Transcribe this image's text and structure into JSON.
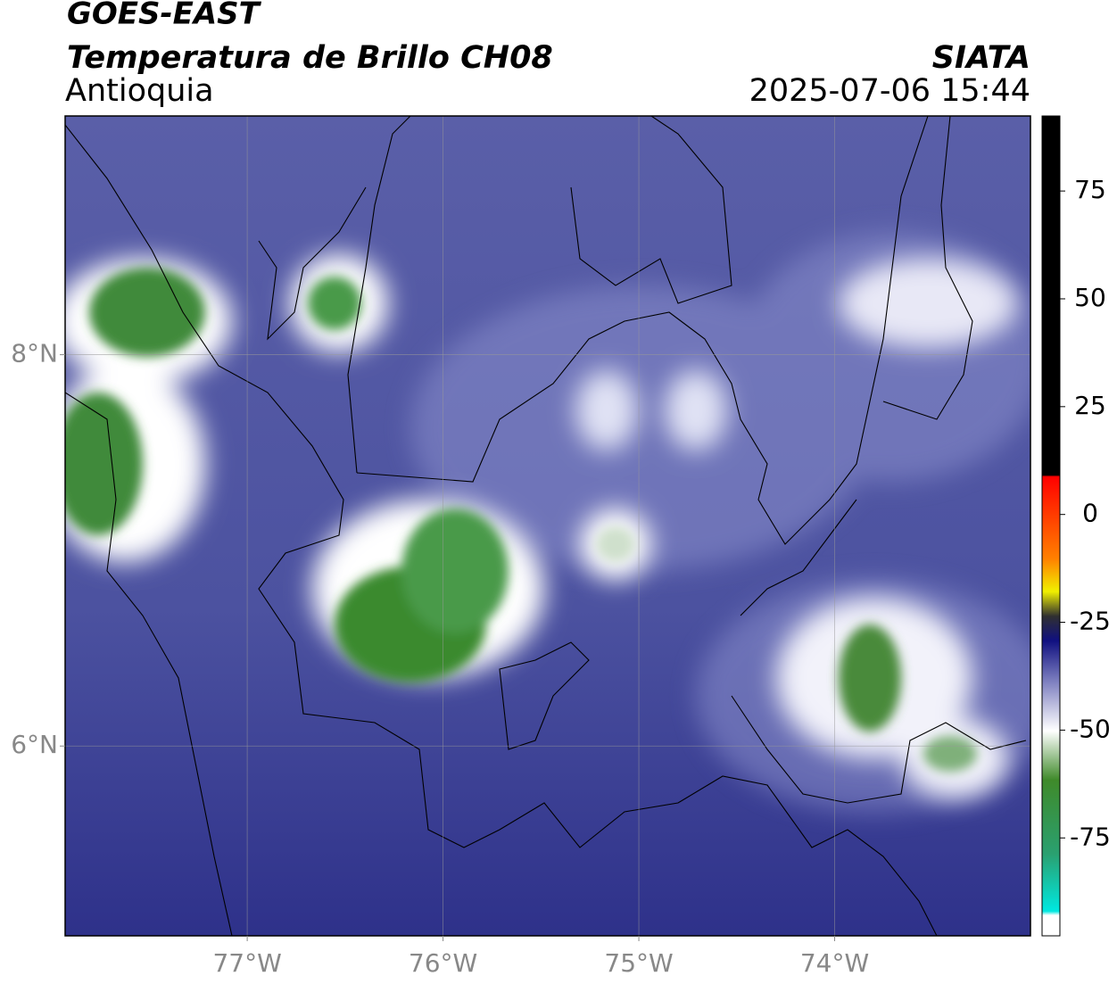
{
  "chart_data": {
    "type": "map",
    "title": "GOES-EAST",
    "subtitle": "Temperatura de Brillo CH08",
    "region": "Antioquia",
    "source": "SIATA",
    "timestamp": "2025-07-06 15:44",
    "xlim": [
      -77.93,
      -73.0
    ],
    "ylim": [
      5.03,
      9.22
    ],
    "xticks": [
      {
        "value": -77,
        "label": "77°W"
      },
      {
        "value": -76,
        "label": "76°W"
      },
      {
        "value": -75,
        "label": "75°W"
      },
      {
        "value": -74,
        "label": "74°W"
      }
    ],
    "yticks": [
      {
        "value": 6,
        "label": "6°N"
      },
      {
        "value": 8,
        "label": "8°N"
      }
    ],
    "grid": true,
    "colorbar": {
      "lim": [
        -97.7,
        92.4
      ],
      "ticks": [
        -75,
        -50,
        -25,
        0,
        25,
        50,
        75
      ]
    }
  }
}
